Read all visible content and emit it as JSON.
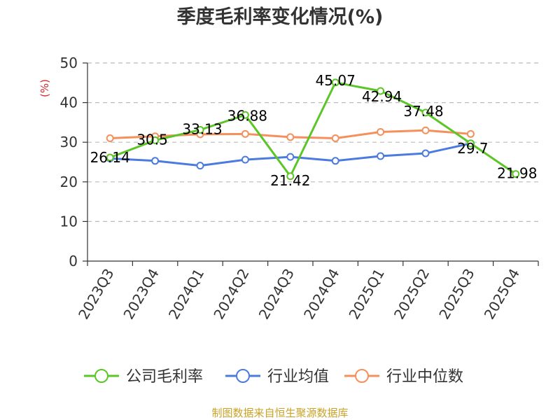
{
  "chart_data": {
    "type": "line",
    "title": "季度毛利率变化情况(%)",
    "ylabel": "(%)",
    "ylim": [
      0,
      50
    ],
    "yticks": [
      0,
      10,
      20,
      30,
      40,
      50
    ],
    "grid": true,
    "legend_position": "bottom",
    "categories": [
      "2023Q3",
      "2023Q4",
      "2024Q1",
      "2024Q2",
      "2024Q3",
      "2024Q4",
      "2025Q1",
      "2025Q2",
      "2025Q3",
      "2025Q4"
    ],
    "series": [
      {
        "name": "公司毛利率",
        "color": "#5cc527",
        "values": [
          26.14,
          30.5,
          33.13,
          36.88,
          21.42,
          45.07,
          42.94,
          37.48,
          29.7,
          21.98
        ],
        "labels": [
          "26.14",
          "30.5",
          "33.13",
          "36.88",
          "21.42",
          "45.07",
          "42.94",
          "37.48",
          "29.7",
          "21.98"
        ]
      },
      {
        "name": "行业均值",
        "color": "#4c7be0",
        "values": [
          25.9,
          25.3,
          24.1,
          25.6,
          26.3,
          25.3,
          26.5,
          27.2,
          29.7,
          null
        ]
      },
      {
        "name": "行业中位数",
        "color": "#f5905c",
        "values": [
          31.0,
          31.5,
          32.0,
          32.1,
          31.3,
          31.0,
          32.6,
          33.0,
          32.1,
          null
        ]
      }
    ],
    "source": "制图数据来自恒生聚源数据库"
  }
}
